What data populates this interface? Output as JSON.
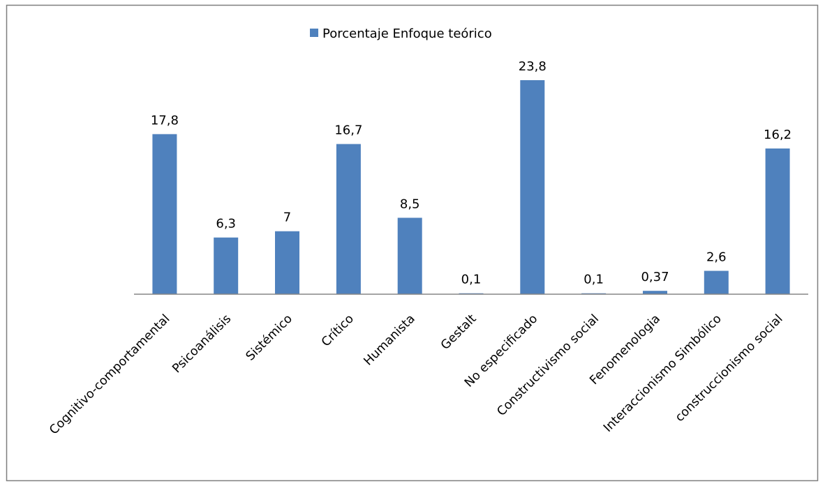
{
  "chart_data": {
    "type": "bar",
    "categories": [
      "Cognitivo-comportamental",
      "Psicoanálisis",
      "Sistémico",
      "Crítico",
      "Humanista",
      "Gestalt",
      "No especificado",
      "Constructivismo social",
      "Fenomenologia",
      "Interaccionismo Simbólico",
      "construccionismo social"
    ],
    "series": [
      {
        "name": "Porcentaje Enfoque teórico",
        "values": [
          17.8,
          6.3,
          7,
          16.7,
          8.5,
          0.1,
          23.8,
          0.1,
          0.37,
          2.6,
          16.2
        ],
        "labels": [
          "17,8",
          "6,3",
          "7",
          "16,7",
          "8,5",
          "0,1",
          "23,8",
          "0,1",
          "0,37",
          "2,6",
          "16,2"
        ]
      }
    ],
    "ylim": [
      0,
      25
    ],
    "grid": false,
    "legend_position": "top",
    "colors": {
      "bar": "#4F81BD",
      "axis": "#868686",
      "frame": "#7F7F7F"
    }
  }
}
